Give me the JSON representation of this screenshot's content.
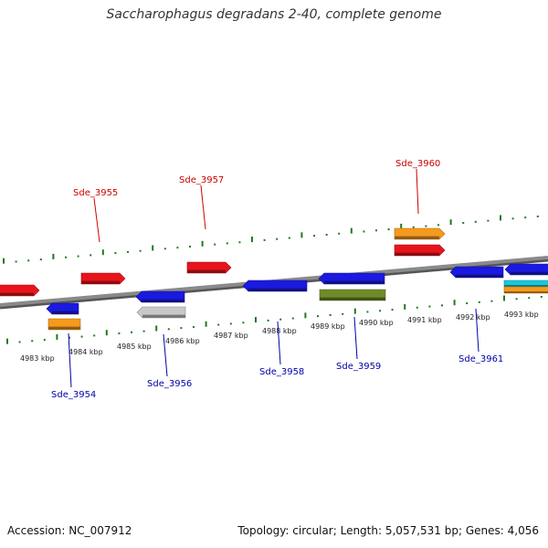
{
  "title": "Saccharophagus degradans 2-40, complete genome",
  "footer": {
    "accession_label": "Accession:",
    "accession": "NC_007912",
    "topology_label": "Topology:",
    "topology": "circular",
    "length_label": "Length:",
    "length": "5,057,531 bp",
    "genes_label": "Genes:",
    "genes": "4,056"
  },
  "colors": {
    "backbone": "#8a8a8a",
    "ticks": "#1f7a1f",
    "label_forward": "#cc0000",
    "label_reverse": "#0000aa",
    "red": "#e8141c",
    "blue": "#1a1ae0",
    "orange": "#f59a1c",
    "gray": "#c8c8c8",
    "olive": "#6e8b2a",
    "cyan": "#19c8d8"
  },
  "scale_labels": [
    "4983 kbp",
    "4984 kbp",
    "4985 kbp",
    "4986 kbp",
    "4987 kbp",
    "4988 kbp",
    "4989 kbp",
    "4990 kbp",
    "4991 kbp",
    "4992 kbp",
    "4993 kbp"
  ],
  "labeled_genes": [
    {
      "name": "Sde_3954",
      "strand": "reverse"
    },
    {
      "name": "Sde_3955",
      "strand": "forward"
    },
    {
      "name": "Sde_3956",
      "strand": "reverse"
    },
    {
      "name": "Sde_3957",
      "strand": "forward"
    },
    {
      "name": "Sde_3958",
      "strand": "reverse"
    },
    {
      "name": "Sde_3959",
      "strand": "reverse"
    },
    {
      "name": "Sde_3960",
      "strand": "forward"
    },
    {
      "name": "Sde_3961",
      "strand": "reverse"
    }
  ],
  "features": [
    {
      "id": "f-red-1",
      "color": "red",
      "direction": "right"
    },
    {
      "id": "f-red-2",
      "color": "red",
      "direction": "right"
    },
    {
      "id": "f-red-3",
      "color": "red",
      "direction": "right"
    },
    {
      "id": "f-red-4",
      "color": "red",
      "direction": "right"
    },
    {
      "id": "f-orange-1",
      "color": "orange",
      "direction": "right"
    },
    {
      "id": "f-blue-1",
      "color": "blue",
      "direction": "left"
    },
    {
      "id": "f-orange-2",
      "color": "orange",
      "direction": "none"
    },
    {
      "id": "f-blue-2",
      "color": "blue",
      "direction": "left"
    },
    {
      "id": "f-gray-1",
      "color": "gray",
      "direction": "left"
    },
    {
      "id": "f-blue-3",
      "color": "blue",
      "direction": "left"
    },
    {
      "id": "f-blue-4",
      "color": "blue",
      "direction": "left"
    },
    {
      "id": "f-olive-1",
      "color": "olive",
      "direction": "none"
    },
    {
      "id": "f-blue-5",
      "color": "blue",
      "direction": "left"
    },
    {
      "id": "f-blue-6",
      "color": "blue",
      "direction": "left"
    },
    {
      "id": "f-cyan-1",
      "color": "cyan",
      "direction": "none"
    },
    {
      "id": "f-orange-3",
      "color": "orange",
      "direction": "none"
    }
  ]
}
